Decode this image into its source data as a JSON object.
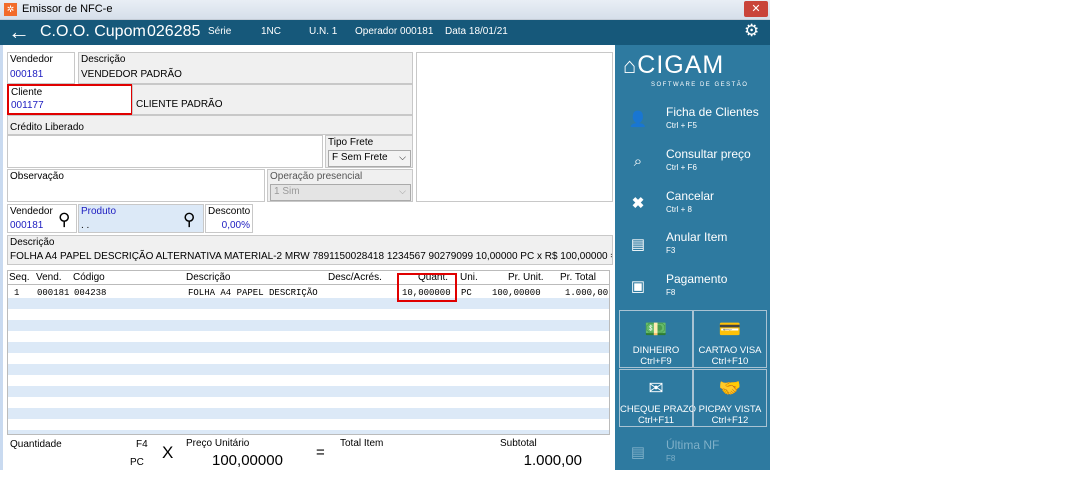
{
  "window": {
    "title": "Emissor de NFC-e",
    "close": "✕"
  },
  "header": {
    "back": "←",
    "coo_label": "C.O.O. Cupom",
    "coo": "026285",
    "serie_label": "Série",
    "serie": "1NC",
    "un": "U.N. 1",
    "operador": "Operador 000181",
    "data": "Data  18/01/21",
    "settings_icon": "⚙"
  },
  "form": {
    "vendedor_label": "Vendedor",
    "vendedor": "000181",
    "descricao_label": "Descrição",
    "descricao": "VENDEDOR PADRÃO",
    "cliente_label": "Cliente",
    "cliente": "001177",
    "cliente_nome": "CLIENTE PADRÃO",
    "credito_label": "Crédito Liberado",
    "tipo_frete_label": "Tipo Frete",
    "tipo_frete": "F Sem Frete",
    "observacao_label": "Observação",
    "operacao_label": "Operação presencial",
    "operacao": "1 Sim",
    "vend2_label": "Vendedor",
    "vend2": "000181",
    "produto_label": "Produto",
    "produto": ". .",
    "desconto_label": "Desconto",
    "desconto": "0,00%",
    "desc_item_label": "Descrição",
    "desc_item": "FOLHA A4 PAPEL DESCRIÇÃO ALTERNATIVA MATERIAL-2 MRW 7891150028418  1234567  90279099 10,00000 PC x R$ 100,00000 = R$"
  },
  "table": {
    "headers": [
      "Seq.",
      "Vend.",
      "Código",
      "Descrição",
      "Desc/Acrés.",
      "Quant.",
      "Uni.",
      "Pr. Unit.",
      "Pr. Total"
    ],
    "rows": [
      [
        "1",
        "000181",
        "004238",
        "FOLHA A4 PAPEL DESCRIÇÃO",
        "",
        "10,000000",
        "PC",
        "100,00000",
        "1.000,00"
      ]
    ]
  },
  "footer": {
    "quantidade_label": "Quantidade",
    "f4": "F4",
    "unit": "PC",
    "x": "X",
    "preco_label": "Preço Unitário",
    "preco": "100,00000",
    "eq": "=",
    "total_label": "Total Item",
    "subtotal_label": "Subtotal",
    "subtotal": "1.000,00"
  },
  "sidebar": {
    "logo": "CIGAM",
    "logo_sub": "SOFTWARE DE GESTÃO",
    "items": [
      {
        "label": "Ficha de Clientes",
        "key": "Ctrl + F5",
        "icon": "user-icon"
      },
      {
        "label": "Consultar preço",
        "key": "Ctrl + F6",
        "icon": "price-search-icon"
      },
      {
        "label": "Cancelar",
        "key": "Ctrl + 8",
        "icon": "close-icon"
      },
      {
        "label": "Anular Item",
        "key": "F3",
        "icon": "document-remove-icon"
      },
      {
        "label": "Pagamento",
        "key": "F8",
        "icon": "money-icon"
      }
    ],
    "payments": [
      {
        "label": "DINHEIRO",
        "key": "Ctrl+F9",
        "icon": "cash-icon"
      },
      {
        "label": "CARTAO VISA",
        "key": "Ctrl+F10",
        "icon": "card-icon"
      },
      {
        "label": "CHEQUE PRAZO",
        "key": "Ctrl+F11",
        "icon": "check-icon"
      },
      {
        "label": "PICPAY VISTA",
        "key": "Ctrl+F12",
        "icon": "handshake-icon"
      }
    ],
    "last": {
      "label": "Última NF",
      "key": "F8"
    }
  },
  "colors": {
    "header": "#16587a",
    "sidebar": "#2e7aa0",
    "highlight": "#e00000",
    "value_blue": "#1c1cc0",
    "row_alt": "#dce9f7"
  }
}
